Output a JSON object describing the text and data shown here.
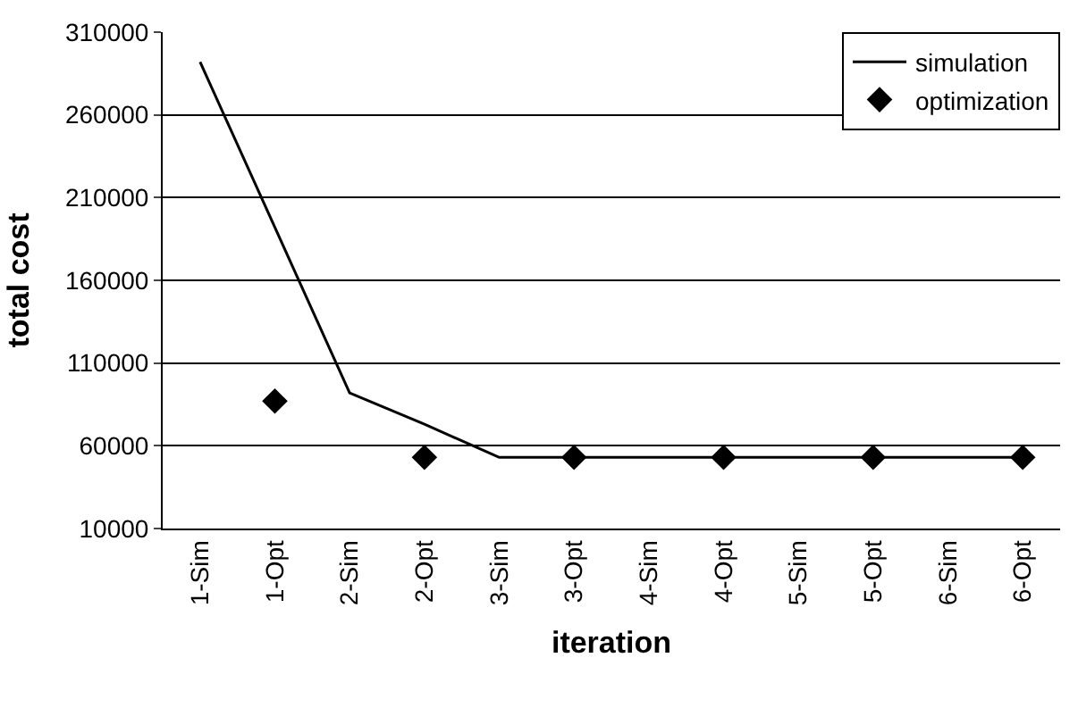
{
  "chart_data": {
    "type": "line",
    "xlabel": "iteration",
    "ylabel": "total cost",
    "categories": [
      "1-Sim",
      "1-Opt",
      "2-Sim",
      "2-Opt",
      "3-Sim",
      "3-Opt",
      "4-Sim",
      "4-Opt",
      "5-Sim",
      "5-Opt",
      "6-Sim",
      "6-Opt"
    ],
    "series": [
      {
        "name": "simulation",
        "color": "#000000",
        "marker": "none",
        "values": [
          292000,
          192000,
          92000,
          73000,
          53000,
          53000,
          53000,
          53000,
          53000,
          53000,
          53000,
          53000
        ]
      },
      {
        "name": "optimization",
        "type": "scatter",
        "color": "#000000",
        "marker": "diamond",
        "values": [
          null,
          87000,
          null,
          53000,
          null,
          53000,
          null,
          53000,
          null,
          53000,
          null,
          53000
        ]
      }
    ],
    "ylim": [
      10000,
      310000
    ],
    "yticks": [
      10000,
      60000,
      110000,
      160000,
      210000,
      260000,
      310000
    ],
    "grid": "y",
    "legend": "top right"
  }
}
